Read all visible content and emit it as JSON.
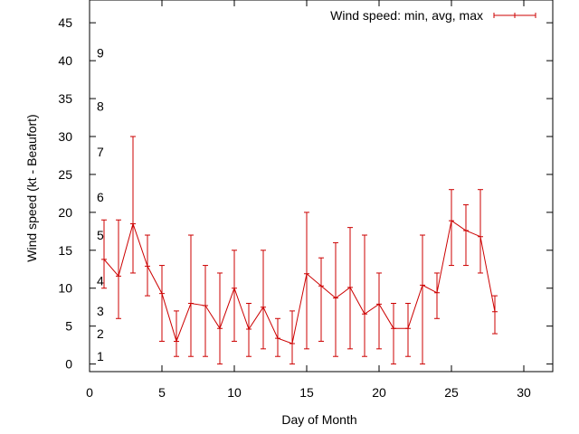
{
  "chart_data": {
    "type": "line",
    "subtype": "errorbars",
    "xlabel": "Day of Month",
    "ylabel": "Wind speed (kt - Beaufort)",
    "xlim": [
      0,
      32
    ],
    "ylim": [
      -1,
      48
    ],
    "x_ticks": [
      0,
      5,
      10,
      15,
      20,
      25,
      30
    ],
    "y_ticks": [
      0,
      5,
      10,
      15,
      20,
      25,
      30,
      35,
      40,
      45
    ],
    "grid": false,
    "legend_position": "top-right",
    "color": "#cc0000",
    "beaufort_labels": [
      {
        "label": "1",
        "kt": 1
      },
      {
        "label": "2",
        "kt": 4
      },
      {
        "label": "3",
        "kt": 7
      },
      {
        "label": "4",
        "kt": 11
      },
      {
        "label": "5",
        "kt": 17
      },
      {
        "label": "6",
        "kt": 22
      },
      {
        "label": "7",
        "kt": 28
      },
      {
        "label": "8",
        "kt": 34
      },
      {
        "label": "9",
        "kt": 41
      }
    ],
    "series": [
      {
        "name": "Wind speed: min, avg, max",
        "points": [
          {
            "x": 1,
            "min": 10,
            "avg": 13.8,
            "max": 19
          },
          {
            "x": 2,
            "min": 6,
            "avg": 11.6,
            "max": 19
          },
          {
            "x": 3,
            "min": 12,
            "avg": 18.5,
            "max": 30
          },
          {
            "x": 4,
            "min": 9,
            "avg": 12.9,
            "max": 17
          },
          {
            "x": 5,
            "min": 3,
            "avg": 9.3,
            "max": 13
          },
          {
            "x": 6,
            "min": 1,
            "avg": 3.0,
            "max": 7
          },
          {
            "x": 7,
            "min": 1,
            "avg": 8.0,
            "max": 17
          },
          {
            "x": 8,
            "min": 1,
            "avg": 7.7,
            "max": 13
          },
          {
            "x": 9,
            "min": 0,
            "avg": 4.7,
            "max": 12
          },
          {
            "x": 10,
            "min": 3,
            "avg": 10.0,
            "max": 15
          },
          {
            "x": 11,
            "min": 1,
            "avg": 4.6,
            "max": 8
          },
          {
            "x": 12,
            "min": 2,
            "avg": 7.5,
            "max": 15
          },
          {
            "x": 13,
            "min": 1,
            "avg": 3.4,
            "max": 6
          },
          {
            "x": 14,
            "min": 0,
            "avg": 2.7,
            "max": 7
          },
          {
            "x": 15,
            "min": 2,
            "avg": 11.9,
            "max": 20
          },
          {
            "x": 16,
            "min": 3,
            "avg": 10.3,
            "max": 14
          },
          {
            "x": 17,
            "min": 1,
            "avg": 8.7,
            "max": 16
          },
          {
            "x": 18,
            "min": 2,
            "avg": 10.1,
            "max": 18
          },
          {
            "x": 19,
            "min": 1,
            "avg": 6.6,
            "max": 17
          },
          {
            "x": 20,
            "min": 2,
            "avg": 7.9,
            "max": 12
          },
          {
            "x": 21,
            "min": 0,
            "avg": 4.7,
            "max": 8
          },
          {
            "x": 22,
            "min": 1,
            "avg": 4.7,
            "max": 8
          },
          {
            "x": 23,
            "min": 0,
            "avg": 10.4,
            "max": 17
          },
          {
            "x": 24,
            "min": 6,
            "avg": 9.4,
            "max": 12
          },
          {
            "x": 25,
            "min": 13,
            "avg": 18.9,
            "max": 23
          },
          {
            "x": 26,
            "min": 13,
            "avg": 17.6,
            "max": 21
          },
          {
            "x": 27,
            "min": 12,
            "avg": 16.8,
            "max": 23
          },
          {
            "x": 28,
            "min": 4,
            "avg": 6.9,
            "max": 9
          }
        ]
      }
    ]
  }
}
